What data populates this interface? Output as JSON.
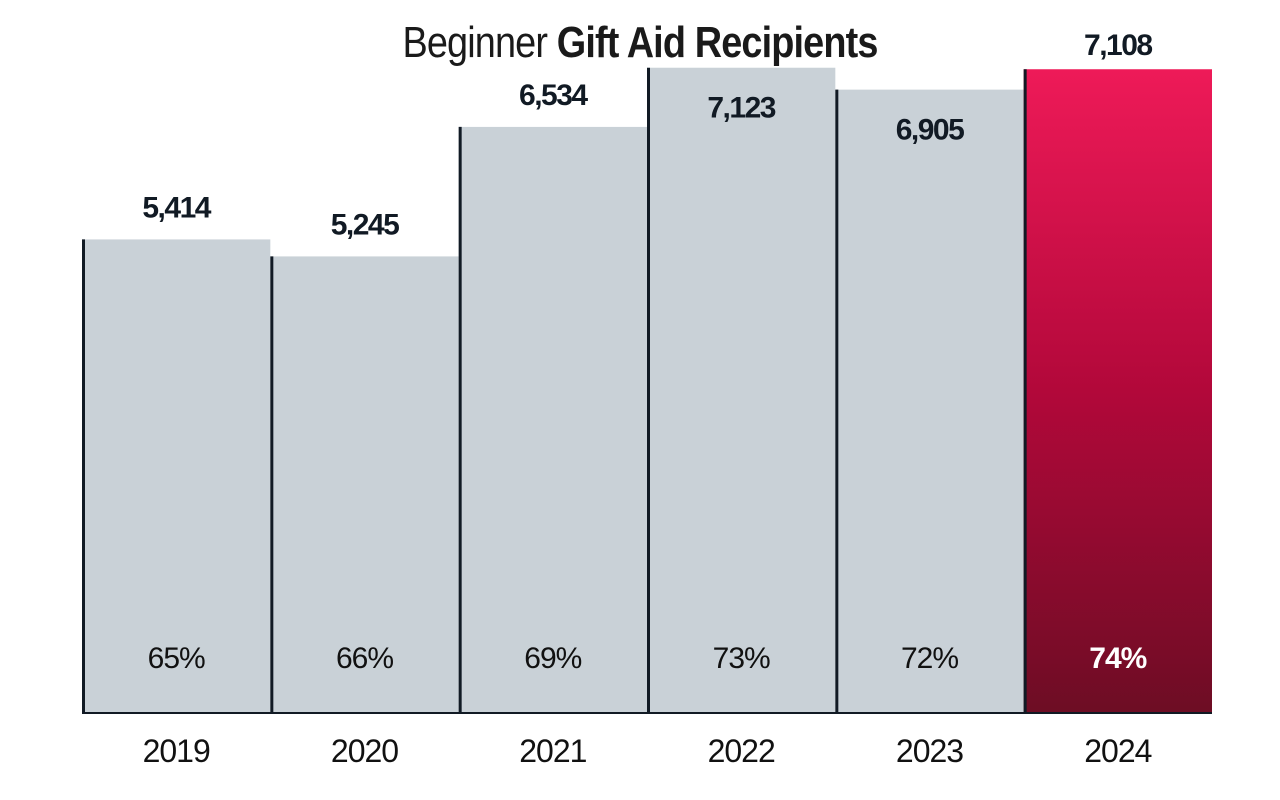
{
  "chart_data": {
    "type": "bar",
    "title_prefix": "Beginner",
    "title_main": "Gift Aid Recipients",
    "title": "Beginner Gift Aid Recipients",
    "xlabel": "",
    "ylabel": "",
    "categories": [
      "2019",
      "2020",
      "2021",
      "2022",
      "2023",
      "2024"
    ],
    "values": [
      5414,
      5245,
      6534,
      7123,
      6905,
      7108
    ],
    "value_labels": [
      "5,414",
      "5,245",
      "6,534",
      "7,123",
      "6,905",
      "7,108"
    ],
    "percent_labels": [
      "65%",
      "66%",
      "69%",
      "73%",
      "72%",
      "74%"
    ],
    "percent_values": [
      65,
      66,
      69,
      73,
      72,
      74
    ],
    "highlight_index": 5,
    "ylim": [
      700,
      7200
    ],
    "grid": false,
    "legend": "none",
    "colors": {
      "bar": "#c9d1d7",
      "bar_edge": "#111a24",
      "highlight_top": "#ee1a58",
      "highlight_mid": "#b2083a",
      "highlight_bottom": "#6d0d24",
      "text": "#111a24"
    }
  }
}
